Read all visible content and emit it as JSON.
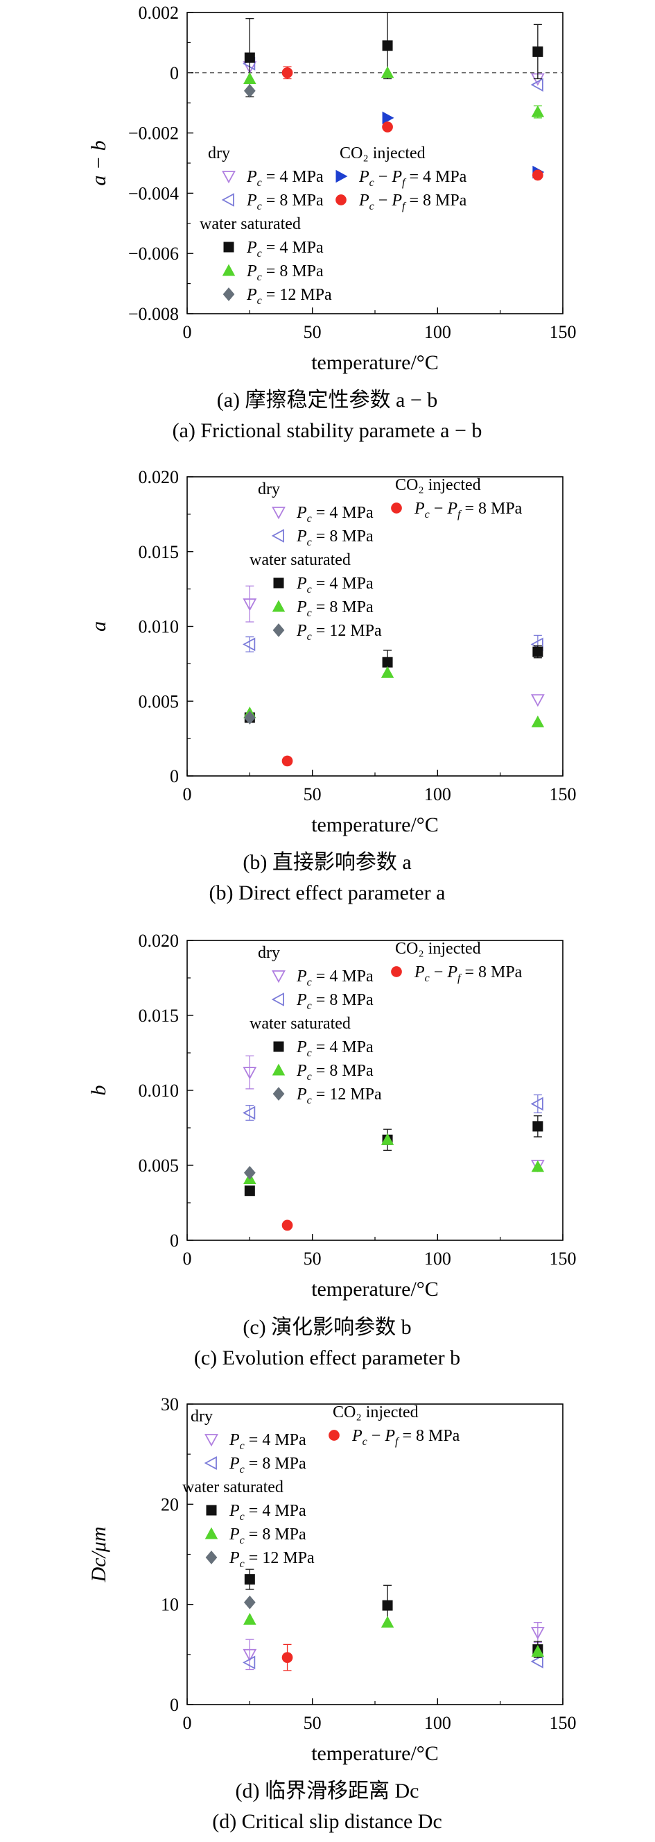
{
  "chart_data": [
    {
      "type": "scatter",
      "panel": "a",
      "ylabel": "a − b",
      "xlabel": "temperature/°C",
      "xlim": [
        0,
        150
      ],
      "ylim": [
        -0.008,
        0.002
      ],
      "xticks": [
        "0",
        "50",
        "100",
        "150"
      ],
      "yticks": [
        "0.002",
        "0",
        "−0.002",
        "−0.004",
        "−0.006",
        "−0.008"
      ],
      "reference_line_y": 0,
      "grid": false,
      "caption_cn": "(a) 摩擦稳定性参数 a − b",
      "caption_en": "(a) Frictional stability paramete a − b",
      "legend": {
        "dry_header": "dry",
        "water_header": "water saturated",
        "co2_header": "CO₂ injected",
        "dry": [
          {
            "label": "= 4 MPa",
            "key": "dry4"
          },
          {
            "label": "= 8 MPa",
            "key": "dry8"
          }
        ],
        "water": [
          {
            "label": "= 4 MPa",
            "key": "w4"
          },
          {
            "label": "= 8 MPa",
            "key": "w8"
          },
          {
            "label": "= 12 MPa",
            "key": "w12"
          }
        ],
        "co2": [
          {
            "label": "= 4 MPa",
            "key": "co2_4"
          },
          {
            "label": "= 8 MPa",
            "key": "co2_8"
          }
        ]
      },
      "series": [
        {
          "key": "dry4",
          "points": [
            {
              "x": 25,
              "y": 0.0002
            },
            {
              "x": 140,
              "y": -0.0002
            }
          ]
        },
        {
          "key": "dry8",
          "points": [
            {
              "x": 25,
              "y": 0.0003
            },
            {
              "x": 140,
              "y": -0.0004
            }
          ]
        },
        {
          "key": "w4",
          "points": [
            {
              "x": 25,
              "y": 0.0005,
              "err": 0.0013
            },
            {
              "x": 80,
              "y": 0.0009,
              "err": 0.0011
            },
            {
              "x": 140,
              "y": 0.0007,
              "err": 0.0009
            }
          ]
        },
        {
          "key": "w8",
          "points": [
            {
              "x": 25,
              "y": -0.0002
            },
            {
              "x": 80,
              "y": 0.0
            },
            {
              "x": 140,
              "y": -0.0013,
              "err": 0.0002
            }
          ]
        },
        {
          "key": "w12",
          "points": [
            {
              "x": 25,
              "y": -0.0006
            }
          ]
        },
        {
          "key": "co2_4",
          "points": [
            {
              "x": 80,
              "y": -0.0015
            },
            {
              "x": 140,
              "y": -0.0033
            }
          ]
        },
        {
          "key": "co2_8",
          "points": [
            {
              "x": 40,
              "y": 0.0,
              "err": 0.0002
            },
            {
              "x": 80,
              "y": -0.0018
            },
            {
              "x": 140,
              "y": -0.0034
            }
          ]
        }
      ]
    },
    {
      "type": "scatter",
      "panel": "b",
      "ylabel": "a",
      "xlabel": "temperature/°C",
      "xlim": [
        0,
        150
      ],
      "ylim": [
        0,
        0.02
      ],
      "xticks": [
        "0",
        "50",
        "100",
        "150"
      ],
      "yticks": [
        "0.020",
        "0.015",
        "0.010",
        "0.005",
        "0"
      ],
      "grid": false,
      "caption_cn": "(b) 直接影响参数 a",
      "caption_en": "(b) Direct effect parameter a",
      "legend": {
        "dry_header": "dry",
        "water_header": "water saturated",
        "co2_header": "CO₂ injected",
        "dry": [
          {
            "label": "= 4 MPa",
            "key": "dry4"
          },
          {
            "label": "= 8 MPa",
            "key": "dry8"
          }
        ],
        "water": [
          {
            "label": "= 4 MPa",
            "key": "w4"
          },
          {
            "label": "= 8 MPa",
            "key": "w8"
          },
          {
            "label": "= 12 MPa",
            "key": "w12"
          }
        ],
        "co2": [
          {
            "label": "= 8 MPa",
            "key": "co2_8"
          }
        ]
      },
      "series": [
        {
          "key": "dry4",
          "points": [
            {
              "x": 25,
              "y": 0.0115,
              "err": 0.0012
            },
            {
              "x": 140,
              "y": 0.0051
            }
          ]
        },
        {
          "key": "dry8",
          "points": [
            {
              "x": 25,
              "y": 0.0088,
              "err": 0.0005
            },
            {
              "x": 140,
              "y": 0.0088,
              "err": 0.0006
            }
          ]
        },
        {
          "key": "w4",
          "points": [
            {
              "x": 25,
              "y": 0.0039
            },
            {
              "x": 80,
              "y": 0.0076,
              "err": 0.0008
            },
            {
              "x": 140,
              "y": 0.0083,
              "err": 0.0004
            }
          ]
        },
        {
          "key": "w8",
          "points": [
            {
              "x": 25,
              "y": 0.0042
            },
            {
              "x": 80,
              "y": 0.0069
            },
            {
              "x": 140,
              "y": 0.0036
            }
          ]
        },
        {
          "key": "w12",
          "points": [
            {
              "x": 25,
              "y": 0.0039
            }
          ]
        },
        {
          "key": "co2_8",
          "points": [
            {
              "x": 40,
              "y": 0.001
            }
          ]
        }
      ]
    },
    {
      "type": "scatter",
      "panel": "c",
      "ylabel": "b",
      "xlabel": "temperature/°C",
      "xlim": [
        0,
        150
      ],
      "ylim": [
        0,
        0.02
      ],
      "xticks": [
        "0",
        "50",
        "100",
        "150"
      ],
      "yticks": [
        "0.020",
        "0.015",
        "0.010",
        "0.005",
        "0"
      ],
      "grid": false,
      "caption_cn": "(c) 演化影响参数 b",
      "caption_en": "(c) Evolution effect parameter b",
      "legend": {
        "dry_header": "dry",
        "water_header": "water saturated",
        "co2_header": "CO₂ injected",
        "dry": [
          {
            "label": "= 4 MPa",
            "key": "dry4"
          },
          {
            "label": "= 8 MPa",
            "key": "dry8"
          }
        ],
        "water": [
          {
            "label": "= 4 MPa",
            "key": "w4"
          },
          {
            "label": "= 8 MPa",
            "key": "w8"
          },
          {
            "label": "= 12 MPa",
            "key": "w12"
          }
        ],
        "co2": [
          {
            "label": "= 8 MPa",
            "key": "co2_8"
          }
        ]
      },
      "series": [
        {
          "key": "dry4",
          "points": [
            {
              "x": 25,
              "y": 0.0112,
              "err": 0.0011
            },
            {
              "x": 140,
              "y": 0.005
            }
          ]
        },
        {
          "key": "dry8",
          "points": [
            {
              "x": 25,
              "y": 0.0085,
              "err": 0.0005
            },
            {
              "x": 140,
              "y": 0.0091,
              "err": 0.0006
            }
          ]
        },
        {
          "key": "w4",
          "points": [
            {
              "x": 25,
              "y": 0.0033
            },
            {
              "x": 80,
              "y": 0.0067,
              "err": 0.0007
            },
            {
              "x": 140,
              "y": 0.0076,
              "err": 0.0007
            }
          ]
        },
        {
          "key": "w8",
          "points": [
            {
              "x": 25,
              "y": 0.0041
            },
            {
              "x": 80,
              "y": 0.0067
            },
            {
              "x": 140,
              "y": 0.0049
            }
          ]
        },
        {
          "key": "w12",
          "points": [
            {
              "x": 25,
              "y": 0.0045
            }
          ]
        },
        {
          "key": "co2_8",
          "points": [
            {
              "x": 40,
              "y": 0.001
            }
          ]
        }
      ]
    },
    {
      "type": "scatter",
      "panel": "d",
      "ylabel": "Dc/μm",
      "xlabel": "temperature/°C",
      "xlim": [
        0,
        150
      ],
      "ylim": [
        0,
        30
      ],
      "xticks": [
        "0",
        "50",
        "100",
        "150"
      ],
      "yticks": [
        "30",
        "20",
        "10",
        "0"
      ],
      "grid": false,
      "caption_cn": "(d) 临界滑移距离 Dc",
      "caption_en": "(d) Critical slip distance Dc",
      "legend": {
        "dry_header": "dry",
        "water_header": "water saturated",
        "co2_header": "CO₂ injected",
        "dry": [
          {
            "label": "= 4 MPa",
            "key": "dry4"
          },
          {
            "label": "= 8 MPa",
            "key": "dry8"
          }
        ],
        "water": [
          {
            "label": "= 4 MPa",
            "key": "w4"
          },
          {
            "label": "= 8 MPa",
            "key": "w8"
          },
          {
            "label": "= 12 MPa",
            "key": "w12"
          }
        ],
        "co2": [
          {
            "label": "= 8 MPa",
            "key": "co2_8"
          }
        ]
      },
      "series": [
        {
          "key": "dry4",
          "points": [
            {
              "x": 25,
              "y": 5.0,
              "err": 1.5
            },
            {
              "x": 140,
              "y": 7.2,
              "err": 1.0
            }
          ]
        },
        {
          "key": "dry8",
          "points": [
            {
              "x": 25,
              "y": 4.2
            },
            {
              "x": 140,
              "y": 4.3
            }
          ]
        },
        {
          "key": "w4",
          "points": [
            {
              "x": 25,
              "y": 12.5,
              "err": 1.0
            },
            {
              "x": 80,
              "y": 9.9,
              "err": 2.0
            },
            {
              "x": 140,
              "y": 5.5,
              "err": 0.8
            }
          ]
        },
        {
          "key": "w8",
          "points": [
            {
              "x": 25,
              "y": 8.5
            },
            {
              "x": 80,
              "y": 8.2
            },
            {
              "x": 140,
              "y": 5.3
            }
          ]
        },
        {
          "key": "w12",
          "points": [
            {
              "x": 25,
              "y": 10.2
            }
          ]
        },
        {
          "key": "co2_8",
          "points": [
            {
              "x": 40,
              "y": 4.7,
              "err": 1.3
            }
          ]
        }
      ]
    }
  ],
  "markers": {
    "dry4": {
      "shape": "triangle-down-open",
      "color": "#b07fe0"
    },
    "dry8": {
      "shape": "triangle-left-open",
      "color": "#7b7bd9"
    },
    "w4": {
      "shape": "square",
      "color": "#111111"
    },
    "w8": {
      "shape": "triangle-up",
      "color": "#54d42c"
    },
    "w12": {
      "shape": "diamond",
      "color": "#66707a"
    },
    "co2_4": {
      "shape": "triangle-right",
      "color": "#1d3fd0"
    },
    "co2_8": {
      "shape": "circle",
      "color": "#ef2a24"
    }
  }
}
